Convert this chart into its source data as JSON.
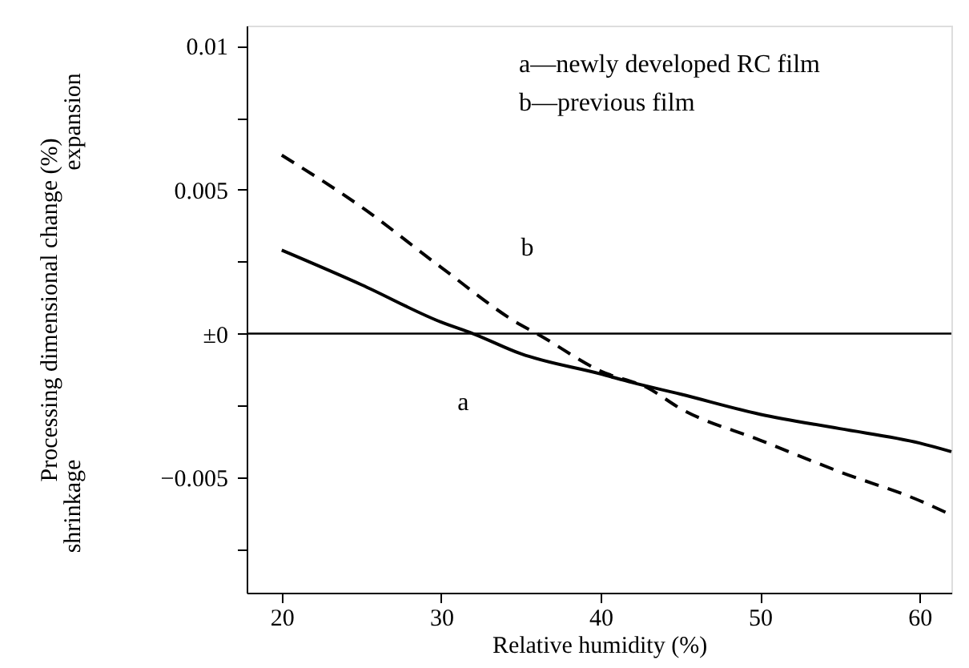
{
  "chart_data": {
    "type": "line",
    "xlabel": "Relative humidity (%)",
    "ylabel": "Processing dimensional change (%)",
    "xlim": [
      17.8,
      62
    ],
    "xticks": [
      20,
      30,
      40,
      50,
      60
    ],
    "ylim": [
      -0.009,
      0.0107
    ],
    "yticks": [
      {
        "value": 0.01,
        "label": "0.01"
      },
      {
        "value": 0.0075,
        "label": null
      },
      {
        "value": 0.005,
        "label": "0.005"
      },
      {
        "value": 0.0025,
        "label": null
      },
      {
        "value": 0,
        "label": "±0"
      },
      {
        "value": -0.0025,
        "label": null
      },
      {
        "value": -0.005,
        "label": "−0.005"
      },
      {
        "value": -0.0075,
        "label": null
      }
    ],
    "grid": false,
    "marker": "none",
    "series": [
      {
        "color": "#000000",
        "line_style": "solid",
        "x": [
          20,
          25,
          30,
          32,
          35,
          40,
          42,
          45,
          50,
          55,
          60,
          62
        ],
        "values": [
          0.0029,
          0.0017,
          0.0004,
          0,
          -0.0007,
          -0.0014,
          -0.0017,
          -0.0021,
          -0.0028,
          -0.0033,
          -0.0038,
          -0.0041
        ]
      },
      {
        "color": "#000000",
        "line_style": "dashed",
        "x": [
          20,
          25,
          30,
          35,
          36,
          40,
          43,
          45,
          50,
          55,
          60,
          62
        ],
        "values": [
          0.0062,
          0.0044,
          0.0023,
          0.0003,
          0,
          -0.0013,
          -0.0019,
          -0.0026,
          -0.0037,
          -0.0048,
          -0.0058,
          -0.0063
        ]
      }
    ],
    "ref_lines": [
      {
        "axis": "y",
        "value": 0,
        "color": "#000000"
      }
    ],
    "annotations": [
      {
        "text": "a",
        "x": 35,
        "y": -0.0007
      },
      {
        "text": "b",
        "x": 33,
        "y": 0.0011
      },
      "a—newly developed RC film",
      "b—previous film",
      "expansion",
      "shrinkage"
    ]
  }
}
